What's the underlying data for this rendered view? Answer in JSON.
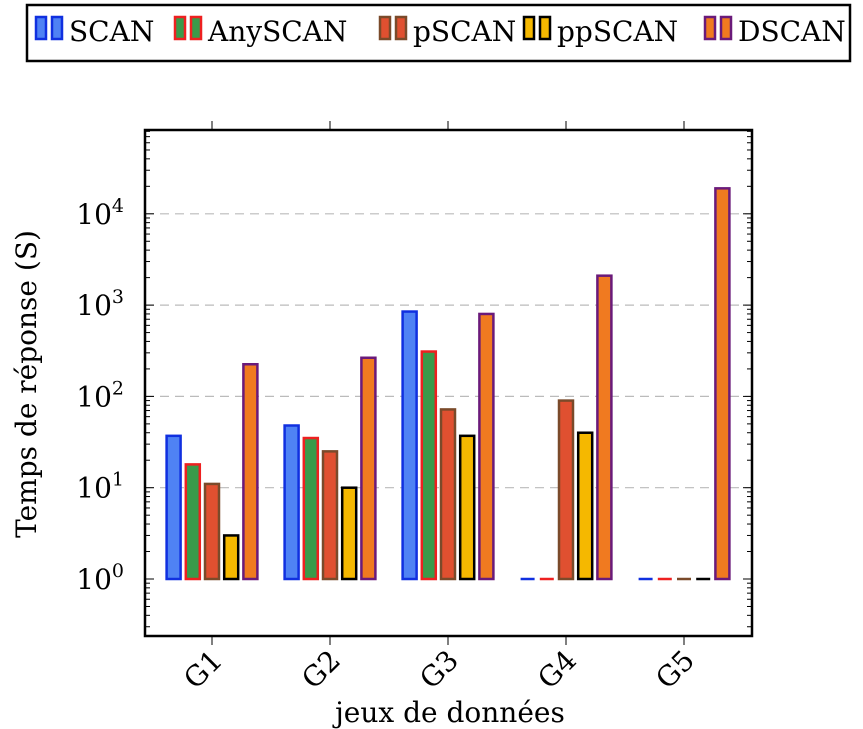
{
  "chart_data": {
    "type": "bar",
    "categories": [
      "G1",
      "G2",
      "G3",
      "G4",
      "G5"
    ],
    "xlabel": "jeux de données",
    "ylabel": "Temps de réponse (S)",
    "yscale": "log",
    "ylim": [
      0.25,
      100000
    ],
    "yticks": [
      {
        "value": 1,
        "base": "10",
        "exp": "0"
      },
      {
        "value": 10,
        "base": "10",
        "exp": "1"
      },
      {
        "value": 100,
        "base": "10",
        "exp": "2"
      },
      {
        "value": 1000,
        "base": "10",
        "exp": "3"
      },
      {
        "value": 10000,
        "base": "10",
        "exp": "4"
      }
    ],
    "grid": "horizontal-dashed",
    "legend_position": "top",
    "baseline": 1,
    "series": [
      {
        "name": "SCAN",
        "values": [
          37,
          48,
          850,
          1,
          1
        ],
        "fill": "#4f82f4",
        "stroke": "#1030e0"
      },
      {
        "name": "AnySCAN",
        "values": [
          18,
          35,
          310,
          1,
          1
        ],
        "fill": "#3a9a4a",
        "stroke": "#ee2020"
      },
      {
        "name": "pSCAN",
        "values": [
          11,
          25,
          72,
          90,
          1
        ],
        "fill": "#e05030",
        "stroke": "#7a4a2a"
      },
      {
        "name": "ppSCAN",
        "values": [
          3,
          10,
          37,
          40,
          1
        ],
        "fill": "#f5b800",
        "stroke": "#000000"
      },
      {
        "name": "DSCAN",
        "values": [
          225,
          265,
          800,
          2100,
          19000
        ],
        "fill": "#f07a20",
        "stroke": "#6a1a7a"
      }
    ]
  }
}
